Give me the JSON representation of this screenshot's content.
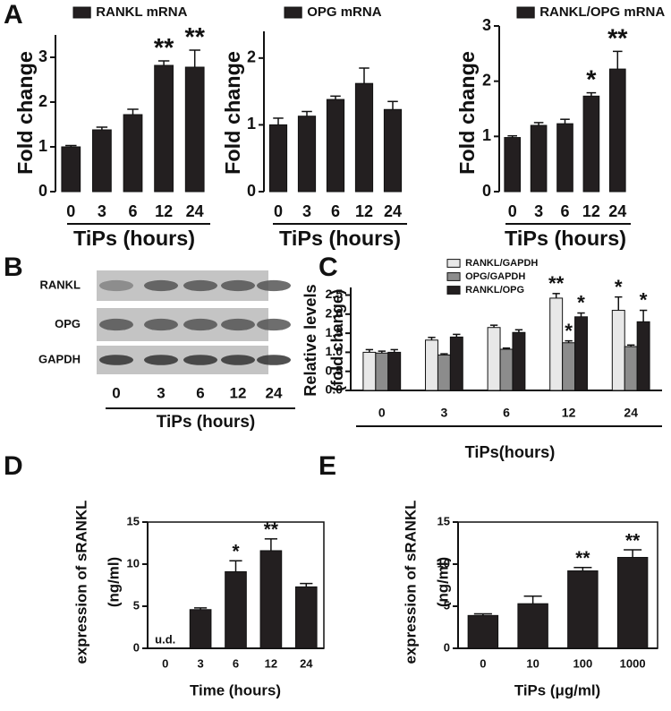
{
  "panels": [
    "A",
    "B",
    "C",
    "D",
    "E"
  ],
  "chart_data": [
    {
      "type": "bar",
      "ylabel": "Fold change",
      "xlabel": "TiPs (hours)",
      "categories": [
        "0",
        "3",
        "6",
        "12",
        "24"
      ],
      "series": [
        {
          "name": "RANKL mRNA",
          "color": "#231f20",
          "values": [
            1.0,
            1.38,
            1.72,
            2.82,
            2.78
          ],
          "errors": [
            0.03,
            0.06,
            0.12,
            0.1,
            0.38
          ],
          "annotations": [
            null,
            null,
            null,
            "**",
            "**"
          ]
        }
      ],
      "ylim": [
        0,
        3.5
      ],
      "yticks": [
        0,
        1,
        2,
        3
      ],
      "grid": false
    },
    {
      "type": "bar",
      "ylabel": "Fold change",
      "xlabel": "TiPs (hours)",
      "categories": [
        "0",
        "3",
        "6",
        "12",
        "24"
      ],
      "series": [
        {
          "name": "OPG mRNA",
          "color": "#231f20",
          "values": [
            1.0,
            1.13,
            1.38,
            1.62,
            1.23
          ],
          "errors": [
            0.1,
            0.07,
            0.05,
            0.23,
            0.12
          ],
          "annotations": [
            null,
            null,
            null,
            null,
            null
          ]
        }
      ],
      "ylim": [
        0,
        2.4
      ],
      "yticks": [
        0,
        1,
        2
      ],
      "grid": false
    },
    {
      "type": "bar",
      "ylabel": "Fold change",
      "xlabel": "TiPs (hours)",
      "categories": [
        "0",
        "3",
        "6",
        "12",
        "24"
      ],
      "series": [
        {
          "name": "RANKL/OPG mRNA",
          "color": "#231f20",
          "values": [
            0.98,
            1.2,
            1.23,
            1.73,
            2.22
          ],
          "errors": [
            0.03,
            0.05,
            0.08,
            0.06,
            0.32
          ],
          "annotations": [
            null,
            null,
            null,
            "*",
            "**"
          ]
        }
      ],
      "ylim": [
        0,
        3
      ],
      "yticks": [
        0,
        1,
        2,
        3
      ],
      "grid": false
    },
    {
      "type": "blot",
      "rows": [
        "RANKL",
        "OPG",
        "GAPDH"
      ],
      "categories": [
        "0",
        "3",
        "6",
        "12",
        "24"
      ],
      "xlabel": "TiPs (hours)"
    },
    {
      "type": "bar",
      "ylabel": [
        "Relative levels",
        "(fold change)"
      ],
      "xlabel": "TiPs(hours)",
      "categories": [
        "0",
        "3",
        "6",
        "12",
        "24"
      ],
      "series": [
        {
          "name": "RANKL/GAPDH",
          "color": "#e8e8e8",
          "values": [
            1.0,
            1.32,
            1.65,
            2.42,
            2.1
          ],
          "errors": [
            0.07,
            0.07,
            0.06,
            0.12,
            0.35
          ],
          "annotations": [
            null,
            null,
            null,
            "**",
            "*"
          ]
        },
        {
          "name": "OPG/GAPDH",
          "color": "#8c8c8c",
          "values": [
            0.98,
            0.93,
            1.08,
            1.25,
            1.15
          ],
          "errors": [
            0.05,
            0.03,
            0.03,
            0.05,
            0.04
          ],
          "annotations": [
            null,
            null,
            null,
            "*",
            null
          ]
        },
        {
          "name": "RANKL/OPG",
          "color": "#231f20",
          "values": [
            1.0,
            1.4,
            1.52,
            1.93,
            1.8
          ],
          "errors": [
            0.07,
            0.07,
            0.07,
            0.1,
            0.3
          ],
          "annotations": [
            null,
            null,
            null,
            "*",
            "*"
          ]
        }
      ],
      "ylim": [
        0,
        2.7
      ],
      "yticks": [
        {
          "value": 0,
          "label": "0.0"
        },
        0.5,
        {
          "value": 1,
          "label": "1.0"
        },
        1.5,
        {
          "value": 2,
          "label": "2.0"
        },
        2.5
      ],
      "grid": false
    },
    {
      "type": "bar",
      "ylabel": [
        "expression of sRANKL",
        "(ng/ml)"
      ],
      "xlabel": "Time (hours)",
      "categories": [
        "0",
        "3",
        "6",
        "12",
        "24"
      ],
      "color": "#231f20",
      "values": [
        null,
        4.6,
        9.1,
        11.6,
        7.3
      ],
      "errors": [
        null,
        0.2,
        1.3,
        1.4,
        0.4
      ],
      "annotations": [
        "u.d.",
        null,
        "*",
        "**",
        null
      ],
      "ylim": [
        0,
        15
      ],
      "yticks": [
        0,
        5,
        10,
        15
      ],
      "grid": false
    },
    {
      "type": "bar",
      "ylabel": [
        "expression of sRANKL",
        "(ng/ml)"
      ],
      "xlabel": "TiPs (μg/ml)",
      "categories": [
        "0",
        "10",
        "100",
        "1000"
      ],
      "color": "#231f20",
      "values": [
        3.9,
        5.3,
        9.2,
        10.8
      ],
      "errors": [
        0.2,
        0.9,
        0.4,
        0.9
      ],
      "annotations": [
        null,
        null,
        "**",
        "**"
      ],
      "ylim": [
        0,
        15
      ],
      "yticks": [
        0,
        5,
        10,
        15
      ],
      "grid": false
    }
  ]
}
